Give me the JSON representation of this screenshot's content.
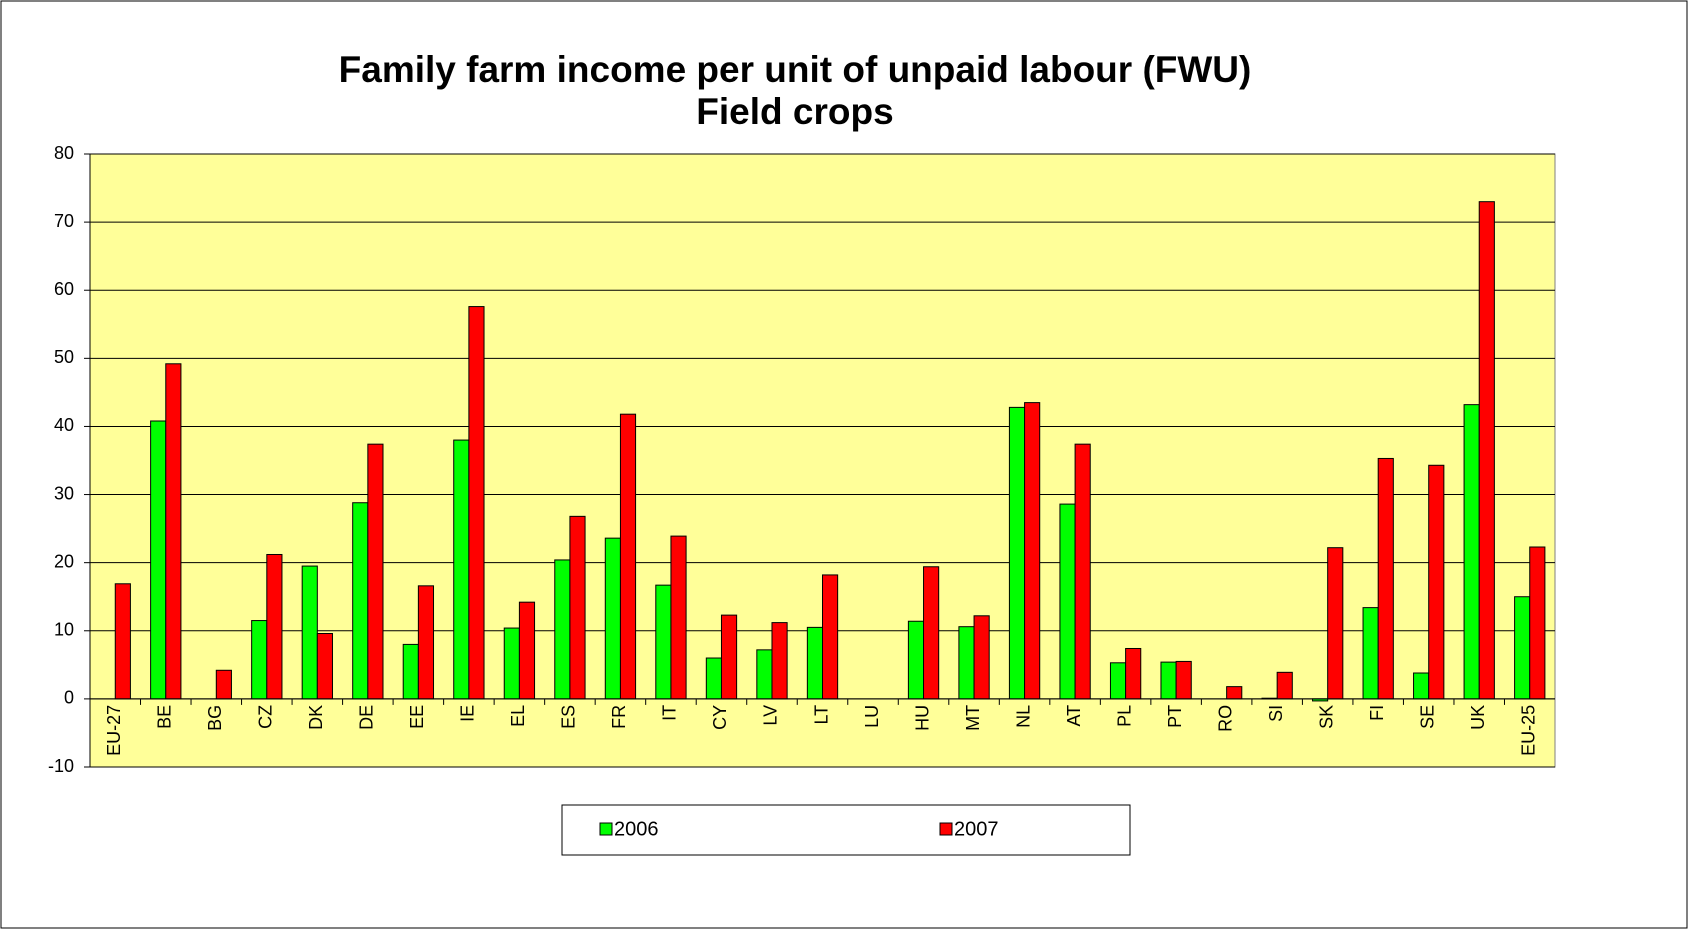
{
  "chart_data": {
    "type": "bar",
    "title": "Family farm income per unit of unpaid labour (FWU)",
    "subtitle": "Field crops",
    "categories": [
      "EU-27",
      "BE",
      "BG",
      "CZ",
      "DK",
      "DE",
      "EE",
      "IE",
      "EL",
      "ES",
      "FR",
      "IT",
      "CY",
      "LV",
      "LT",
      "LU",
      "HU",
      "MT",
      "NL",
      "AT",
      "PL",
      "PT",
      "RO",
      "SI",
      "SK",
      "FI",
      "SE",
      "UK",
      "EU-25"
    ],
    "series": [
      {
        "name": "2006",
        "color": "#00ff00",
        "values": [
          null,
          40.8,
          null,
          11.5,
          19.5,
          28.8,
          8.0,
          38.0,
          10.4,
          20.4,
          23.6,
          16.7,
          6.0,
          7.2,
          10.5,
          null,
          11.4,
          10.6,
          42.8,
          28.6,
          5.3,
          5.4,
          null,
          0.1,
          -0.3,
          13.4,
          3.8,
          43.2,
          15.0
        ]
      },
      {
        "name": "2007",
        "color": "#ff0000",
        "values": [
          16.9,
          49.2,
          4.2,
          21.2,
          9.6,
          37.4,
          16.6,
          57.6,
          14.2,
          26.8,
          41.8,
          23.9,
          12.3,
          11.2,
          18.2,
          null,
          19.4,
          12.2,
          43.5,
          37.4,
          7.4,
          5.5,
          1.8,
          3.9,
          22.2,
          35.3,
          34.3,
          73.0,
          22.3
        ]
      }
    ],
    "ylim": [
      -10,
      80
    ],
    "yticks": [
      -10,
      0,
      10,
      20,
      30,
      40,
      50,
      60,
      70,
      80
    ],
    "grid": true,
    "plot_background": "#ffff99",
    "legend": "bottom"
  }
}
